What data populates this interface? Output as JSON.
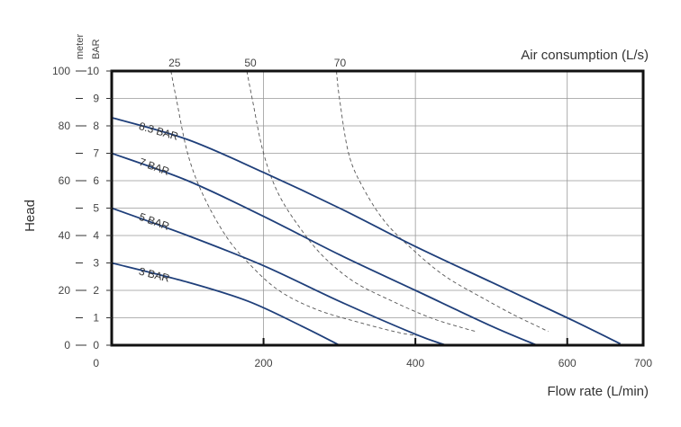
{
  "chart_data": {
    "type": "line",
    "title": "",
    "xlabel": "Flow rate (L/min)",
    "ylabel": "Head",
    "top_label": "Air consumption (L/s)",
    "left_units": [
      "meter",
      "BAR"
    ],
    "xlim": [
      0,
      700
    ],
    "x_ticks": [
      0,
      200,
      400,
      600,
      700
    ],
    "meter_ticks": [
      0,
      20,
      40,
      60,
      80,
      100
    ],
    "bar_ticks": [
      0,
      1,
      2,
      3,
      4,
      5,
      6,
      7,
      8,
      9,
      10
    ],
    "ylim_bar": [
      0,
      10
    ],
    "grid_x": [
      200,
      400,
      600
    ],
    "colors": {
      "pressure": "#1f3f7a",
      "air": "#555555",
      "frame": "#111111",
      "grid": "#999999"
    },
    "pressure_series": [
      {
        "name": "8.3 BAR",
        "x": [
          0,
          100,
          200,
          300,
          400,
          500,
          600,
          670
        ],
        "y": [
          8.3,
          7.5,
          6.3,
          5.0,
          3.6,
          2.3,
          1.0,
          0.05
        ]
      },
      {
        "name": "7 BAR",
        "x": [
          0,
          100,
          200,
          300,
          400,
          500,
          560
        ],
        "y": [
          7.0,
          6.0,
          4.7,
          3.3,
          2.0,
          0.7,
          0.0
        ]
      },
      {
        "name": "5 BAR",
        "x": [
          0,
          100,
          200,
          300,
          400,
          440
        ],
        "y": [
          5.0,
          4.0,
          2.9,
          1.6,
          0.4,
          0.0
        ]
      },
      {
        "name": "3 BAR",
        "x": [
          0,
          100,
          180,
          250,
          300
        ],
        "y": [
          3.0,
          2.3,
          1.6,
          0.7,
          0.0
        ]
      }
    ],
    "air_series": [
      {
        "name": "25",
        "x": [
          78,
          85,
          100,
          120,
          150,
          180,
          220,
          270,
          330,
          380,
          405
        ],
        "y": [
          10.0,
          9.0,
          7.0,
          5.5,
          4.0,
          3.0,
          2.0,
          1.3,
          0.8,
          0.45,
          0.35
        ]
      },
      {
        "name": "50",
        "x": [
          178,
          185,
          200,
          220,
          250,
          280,
          320,
          370,
          420,
          460,
          480
        ],
        "y": [
          10.0,
          9.0,
          7.0,
          5.5,
          4.2,
          3.2,
          2.3,
          1.6,
          1.0,
          0.65,
          0.5
        ]
      },
      {
        "name": "70",
        "x": [
          296,
          300,
          312,
          330,
          360,
          400,
          440,
          490,
          530,
          560,
          575
        ],
        "y": [
          10.0,
          9.0,
          7.0,
          5.8,
          4.5,
          3.4,
          2.5,
          1.7,
          1.1,
          0.7,
          0.5
        ]
      }
    ]
  }
}
